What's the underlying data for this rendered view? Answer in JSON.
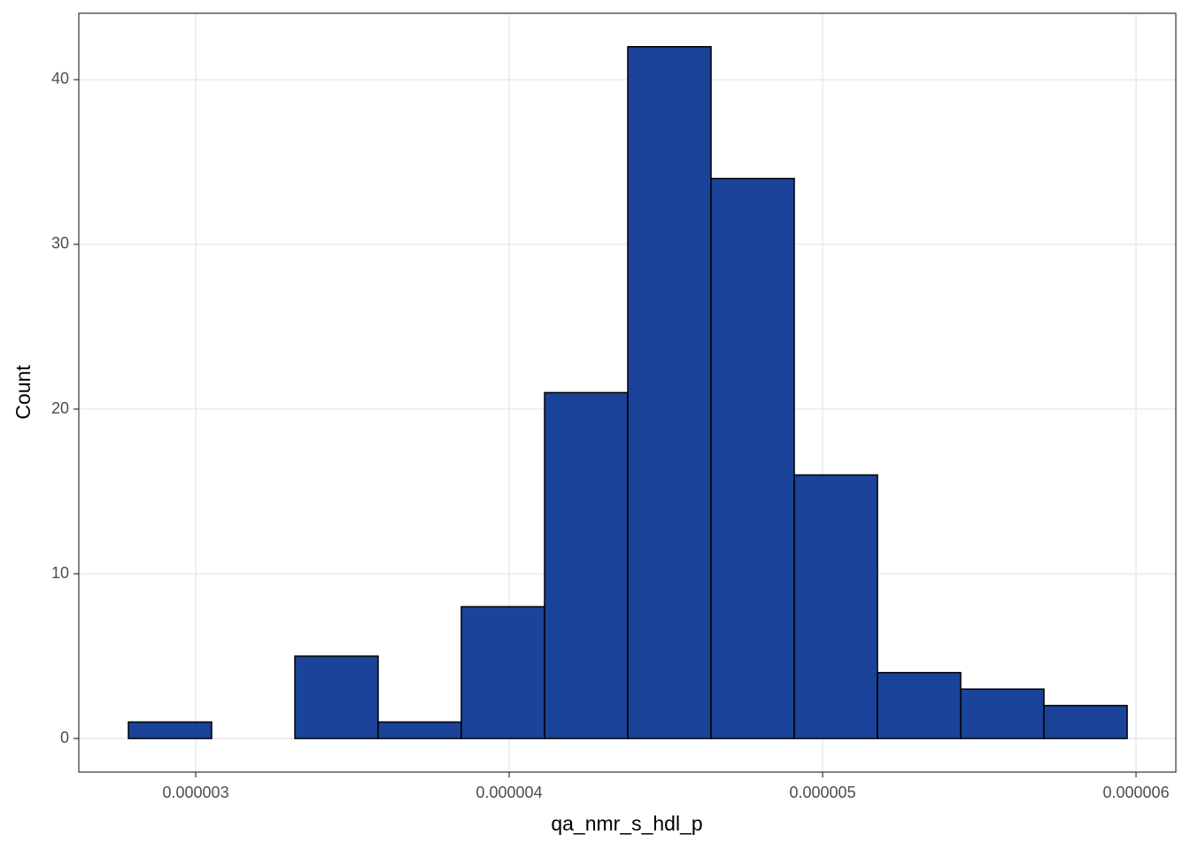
{
  "chart_data": {
    "type": "histogram",
    "x_label": "qa_nmr_s_hdl_p",
    "y_label": "Count",
    "bins": [
      2.7853e-06,
      3.0508e-06,
      3.3164e-06,
      3.5819e-06,
      3.8475e-06,
      4.113e-06,
      4.3785e-06,
      4.6441e-06,
      4.9096e-06,
      5.1751e-06,
      5.4407e-06,
      5.7062e-06,
      5.9718e-06
    ],
    "values": [
      1,
      0,
      5,
      1,
      8,
      21,
      42,
      34,
      16,
      4,
      3,
      2
    ],
    "color": "#1a4399",
    "edge_color": "#000000",
    "xlim": [
      2.627e-06,
      6.127e-06
    ],
    "xticks": [
      3e-06,
      4e-06,
      5e-06,
      6e-06
    ],
    "ylim": [
      -2.04,
      44.03
    ],
    "yticks": [
      0,
      10,
      20,
      30,
      40
    ],
    "grid": true
  }
}
